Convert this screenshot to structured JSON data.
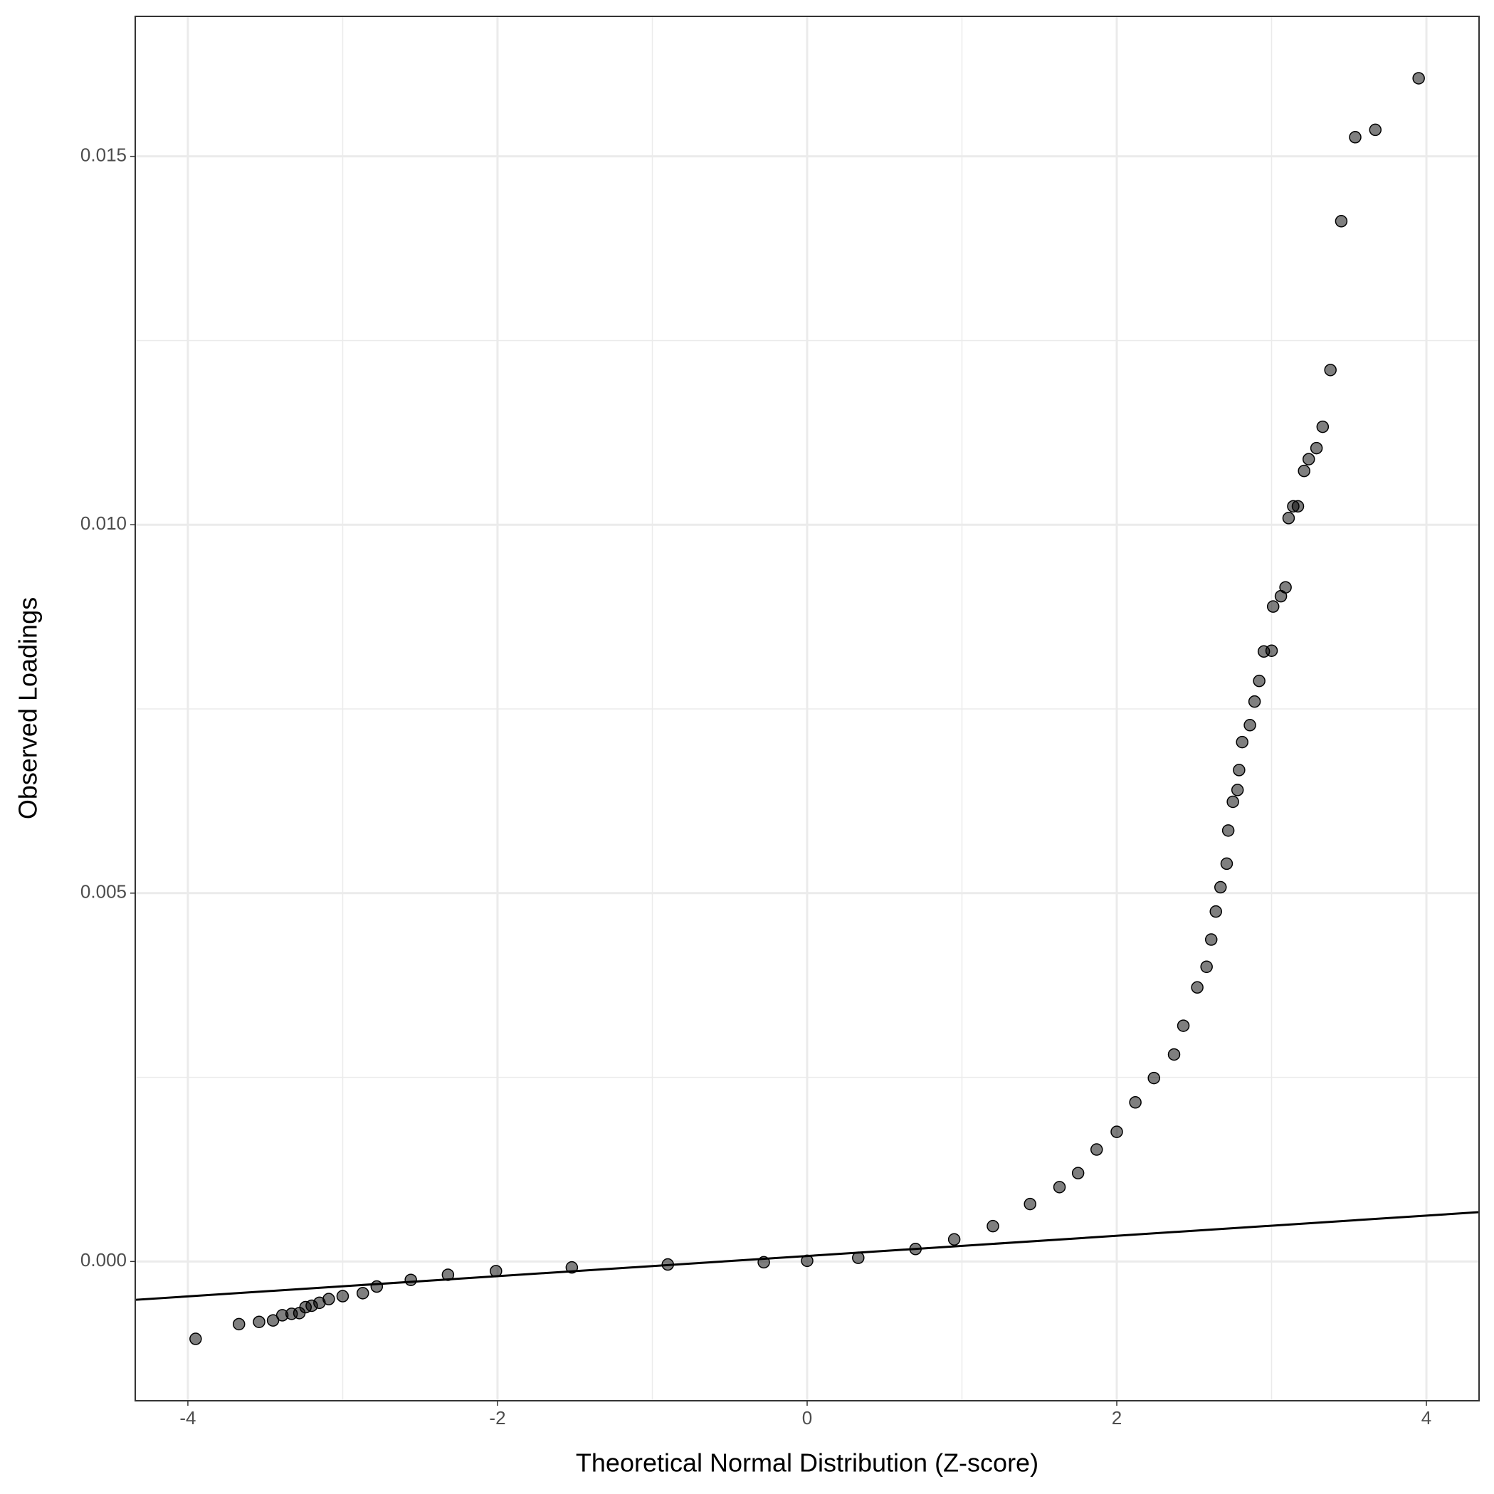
{
  "chart_data": {
    "type": "scatter",
    "x_label": "Theoretical Normal Distribution (Z-score)",
    "y_label": "Observed Loadings",
    "xlim": [
      -4.34,
      4.34
    ],
    "ylim": [
      -0.00189,
      0.0169
    ],
    "xticks": [
      -4,
      -2,
      0,
      2,
      4
    ],
    "yticks": [
      {
        "value": 0,
        "label": "0.000"
      },
      0.005,
      {
        "value": 0.01,
        "label": "0.010"
      },
      0.015
    ],
    "minor_xticks": [
      -3,
      -1,
      1,
      3
    ],
    "minor_yticks": [
      0.0025,
      0.0075,
      0.0125
    ],
    "grid": true,
    "color": "#000000",
    "x": [
      -3.95,
      -3.67,
      -3.54,
      -3.45,
      -3.39,
      -3.33,
      -3.28,
      -3.24,
      -3.2,
      -3.15,
      -3.09,
      -3.0,
      -2.87,
      -2.78,
      -2.56,
      -2.32,
      -2.01,
      -1.52,
      -0.9,
      -0.28,
      0,
      0.33,
      0.7,
      0.95,
      1.2,
      1.44,
      1.63,
      1.75,
      1.87,
      2.0,
      2.12,
      2.24,
      2.37,
      2.43,
      2.52,
      2.58,
      2.61,
      2.64,
      2.67,
      2.71,
      2.72,
      2.75,
      2.78,
      2.79,
      2.81,
      2.86,
      2.89,
      2.92,
      2.95,
      3.0,
      3.01,
      3.06,
      3.09,
      3.11,
      3.14,
      3.17,
      3.21,
      3.24,
      3.29,
      3.33,
      3.38,
      3.45,
      3.54,
      3.67,
      3.95
    ],
    "y": [
      -0.00105,
      -0.00085,
      -0.00082,
      -0.0008,
      -0.00073,
      -0.00071,
      -0.0007,
      -0.00062,
      -0.0006,
      -0.00056,
      -0.00051,
      -0.00047,
      -0.00043,
      -0.00034,
      -0.00025,
      -0.00018,
      -0.00013,
      -8e-05,
      -4e-05,
      -1e-05,
      1e-05,
      5e-05,
      0.00017,
      0.0003,
      0.00048,
      0.00078,
      0.00101,
      0.0012,
      0.00152,
      0.00176,
      0.00216,
      0.00249,
      0.00281,
      0.0032,
      0.00372,
      0.004,
      0.00437,
      0.00475,
      0.00508,
      0.0054,
      0.00585,
      0.00624,
      0.0064,
      0.00667,
      0.00705,
      0.00728,
      0.0076,
      0.00788,
      0.00828,
      0.00829,
      0.00889,
      0.00903,
      0.00915,
      0.01009,
      0.01025,
      0.01025,
      0.01073,
      0.01089,
      0.01104,
      0.01133,
      0.0121,
      0.01412,
      0.01526,
      0.01536,
      0.01606
    ],
    "reference_line": {
      "x": [
        -4.34,
        4.34
      ],
      "y": [
        -0.00052,
        0.00067
      ]
    }
  }
}
